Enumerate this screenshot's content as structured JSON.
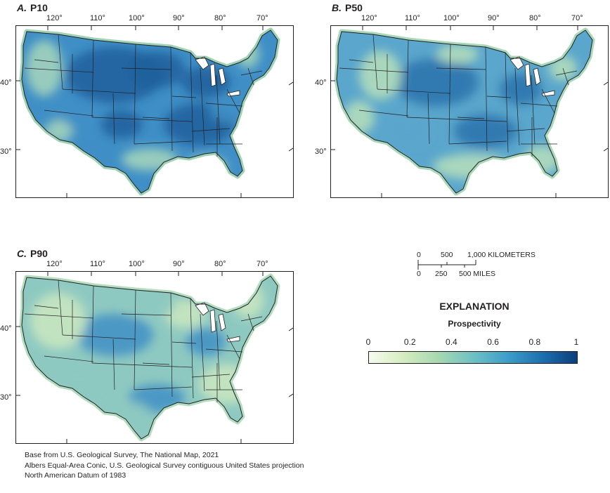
{
  "panels": [
    {
      "letter": "A.",
      "title": "P10",
      "colors": {
        "base": "#3f8fc6",
        "light": "#a7d6bb",
        "dark": "#1d5f9c",
        "coast": "#9fd3b8"
      }
    },
    {
      "letter": "B.",
      "title": "P50",
      "colors": {
        "base": "#5aa6cc",
        "light": "#b7dfbb",
        "dark": "#2a73ad",
        "coast": "#a9d8bb"
      }
    },
    {
      "letter": "C.",
      "title": "P90",
      "colors": {
        "base": "#8ec9c1",
        "light": "#cbe8c0",
        "dark": "#3f8fc6",
        "coast": "#b3ddc0"
      }
    }
  ],
  "longitude_labels": [
    "120°",
    "110°",
    "100°",
    "90°",
    "80°",
    "70°"
  ],
  "latitude_labels": [
    "40°",
    "30°"
  ],
  "scale_bar": {
    "km_labels": [
      "0",
      "500",
      "1,000 KILOMETERS"
    ],
    "mile_labels": [
      "0",
      "250",
      "500 MILES"
    ]
  },
  "explanation": {
    "title": "EXPLANATION",
    "subtitle": "Prospectivity",
    "ticks": [
      "0",
      "0.2",
      "0.4",
      "0.6",
      "0.8",
      "1"
    ],
    "tick_values": [
      0,
      0.2,
      0.4,
      0.6,
      0.8,
      1
    ],
    "gradient_colors": [
      "#f7fbef",
      "#d5ecc0",
      "#a6d8b1",
      "#6fc1c4",
      "#3d9ec9",
      "#1d6fae",
      "#0c3f7e"
    ]
  },
  "source_notes": [
    "Base from U.S. Geological Survey, The National Map, 2021",
    "Albers Equal-Area Conic, U.S. Geological Survey contiguous United States projection",
    "North American Datum of 1983"
  ]
}
